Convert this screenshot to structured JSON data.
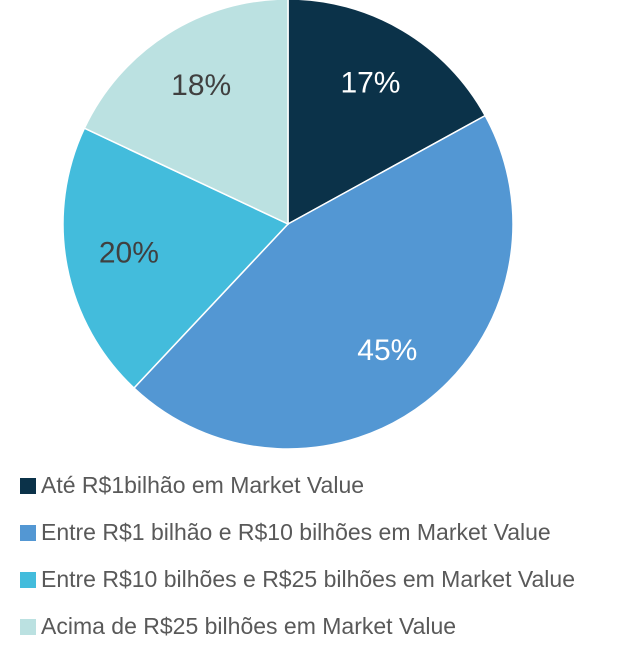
{
  "chart_data": {
    "type": "pie",
    "categories": [
      "Até R$1bilhão em Market Value",
      "Entre R$1 bilhão e R$10 bilhões em Market Value",
      "Entre R$10 bilhões e R$25 bilhões em Market Value",
      "Acima de R$25 bilhões em Market Value"
    ],
    "values": [
      17,
      45,
      20,
      18
    ],
    "value_labels": [
      "17%",
      "45%",
      "20%",
      "18%"
    ],
    "colors": [
      "#0b3249",
      "#5397d3",
      "#43bcdc",
      "#bbe1e1"
    ],
    "legend": "bottom"
  }
}
